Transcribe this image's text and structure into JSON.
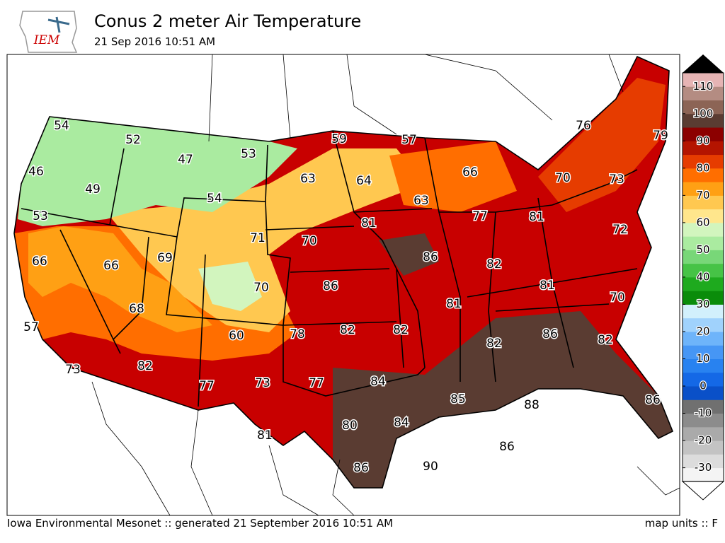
{
  "header": {
    "logo": "IEM",
    "title": "Conus 2 meter Air Temperature",
    "subtitle": "21 Sep 2016 10:51 AM"
  },
  "stations": [
    54,
    52,
    47,
    53,
    59,
    57,
    76,
    79,
    46,
    49,
    63,
    64,
    66,
    70,
    73,
    54,
    63,
    53,
    71,
    70,
    81,
    77,
    81,
    72,
    66,
    66,
    69,
    86,
    82,
    70,
    86,
    81,
    68,
    81,
    70,
    57,
    78,
    82,
    82,
    86,
    60,
    82,
    82,
    73,
    82,
    77,
    73,
    77,
    84,
    85,
    88,
    86,
    81,
    80,
    84,
    86,
    86,
    90
  ],
  "colorbar": {
    "range": [
      -35,
      115
    ],
    "ticks": [
      -30,
      -20,
      -10,
      0,
      10,
      20,
      30,
      40,
      50,
      60,
      70,
      80,
      90,
      100,
      110
    ],
    "colors": [
      "#f4f4f4",
      "#dcdcdc",
      "#c3c3c3",
      "#aaaaaa",
      "#8c8c8c",
      "#707070",
      "#0a50c8",
      "#1468e6",
      "#2882f0",
      "#4696f5",
      "#6eb4fa",
      "#a0d2fc",
      "#d2f0fc",
      "#0a8c0a",
      "#1eaa1e",
      "#46c346",
      "#78d778",
      "#aaeba0",
      "#d2f5be",
      "#ffe68c",
      "#ffc850",
      "#ffa014",
      "#ff6e00",
      "#e63c00",
      "#b41400",
      "#8c0000",
      "#5a3c32",
      "#8c6455",
      "#b48c82",
      "#e6b4b4"
    ]
  },
  "footer": {
    "left": "Iowa Environmental Mesonet :: generated 21 September 2016 10:51 AM",
    "right": "map units :: F"
  }
}
